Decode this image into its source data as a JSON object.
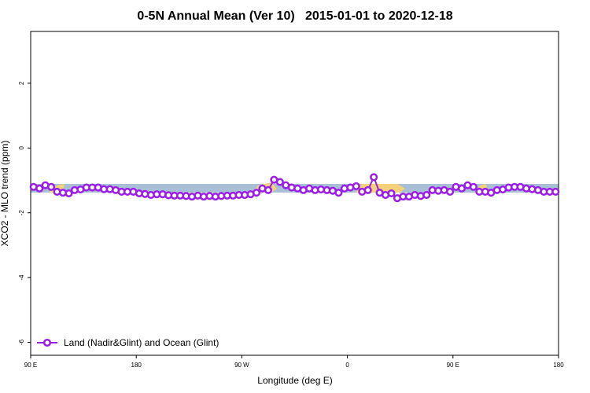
{
  "chart_data": {
    "type": "line",
    "title": "0-5N Annual Mean (Ver 10)   2015-01-01 to 2020-12-18",
    "x_label": "Longitude (deg E)",
    "y_label": "XCO2 - MLO trend (ppm)",
    "legend_position": "bottom-left",
    "xlim": [
      90,
      540
    ],
    "ylim": [
      -6.4,
      3.6
    ],
    "xticks": [
      {
        "value": 90,
        "label": "90 E"
      },
      {
        "value": 180,
        "label": "180"
      },
      {
        "value": 270,
        "label": "90 W"
      },
      {
        "value": 360,
        "label": "0"
      },
      {
        "value": 450,
        "label": "90 E"
      },
      {
        "value": 540,
        "label": "180"
      }
    ],
    "yticks": [
      2,
      0,
      -2,
      -4,
      -6
    ],
    "x": [
      92.5,
      97.5,
      102.5,
      107.5,
      112.5,
      117.5,
      122.5,
      127.5,
      132.5,
      137.5,
      142.5,
      147.5,
      152.5,
      157.5,
      162.5,
      167.5,
      172.5,
      177.5,
      182.5,
      187.5,
      192.5,
      197.5,
      202.5,
      207.5,
      212.5,
      217.5,
      222.5,
      227.5,
      232.5,
      237.5,
      242.5,
      247.5,
      252.5,
      257.5,
      262.5,
      267.5,
      272.5,
      277.5,
      282.5,
      287.5,
      292.5,
      297.5,
      302.5,
      307.5,
      312.5,
      317.5,
      322.5,
      327.5,
      332.5,
      337.5,
      342.5,
      347.5,
      352.5,
      357.5,
      362.5,
      367.5,
      372.5,
      377.5,
      382.5,
      387.5,
      392.5,
      397.5,
      402.5,
      407.5,
      412.5,
      417.5,
      422.5,
      427.5,
      432.5,
      437.5,
      442.5,
      447.5,
      452.5,
      457.5,
      462.5,
      467.5,
      472.5,
      477.5,
      482.5,
      487.5,
      492.5,
      497.5,
      502.5,
      507.5,
      512.5,
      517.5,
      522.5,
      527.5,
      532.5,
      537.5
    ],
    "series": [
      {
        "name": "Land (Nadir&Glint) and Ocean (Glint)",
        "color": "#9a1ee6",
        "values": [
          -1.2,
          -1.25,
          -1.15,
          -1.2,
          -1.35,
          -1.38,
          -1.4,
          -1.3,
          -1.28,
          -1.22,
          -1.22,
          -1.22,
          -1.27,
          -1.27,
          -1.3,
          -1.35,
          -1.35,
          -1.35,
          -1.4,
          -1.42,
          -1.45,
          -1.43,
          -1.43,
          -1.46,
          -1.47,
          -1.47,
          -1.48,
          -1.5,
          -1.47,
          -1.5,
          -1.48,
          -1.5,
          -1.48,
          -1.47,
          -1.47,
          -1.45,
          -1.45,
          -1.43,
          -1.38,
          -1.25,
          -1.3,
          -0.98,
          -1.05,
          -1.15,
          -1.22,
          -1.25,
          -1.3,
          -1.25,
          -1.3,
          -1.28,
          -1.3,
          -1.32,
          -1.38,
          -1.25,
          -1.22,
          -1.18,
          -1.35,
          -1.3,
          -0.9,
          -1.38,
          -1.45,
          -1.4,
          -1.55,
          -1.5,
          -1.5,
          -1.45,
          -1.48,
          -1.45,
          -1.3,
          -1.32,
          -1.3,
          -1.35,
          -1.2,
          -1.25,
          -1.15,
          -1.2,
          -1.35,
          -1.35,
          -1.38,
          -1.3,
          -1.28,
          -1.22,
          -1.2,
          -1.2,
          -1.25,
          -1.27,
          -1.3,
          -1.35,
          -1.35,
          -1.35
        ]
      }
    ]
  }
}
